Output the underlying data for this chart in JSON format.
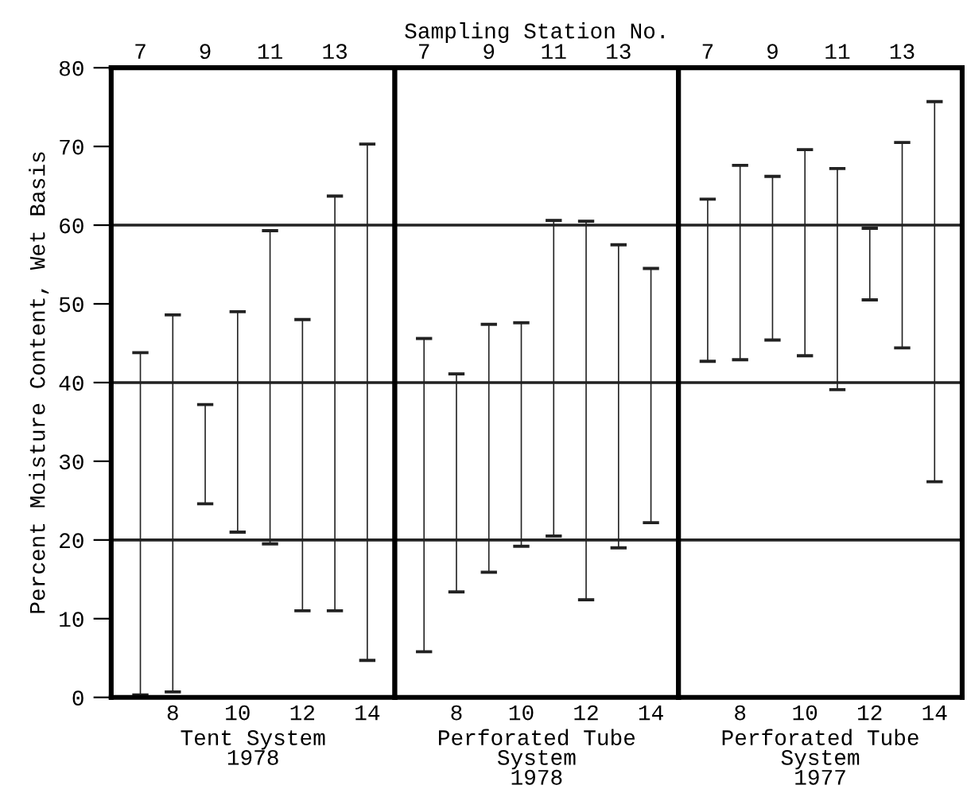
{
  "chart_data": [
    {
      "type": "bar",
      "xlabel": "Tent System\n1978",
      "ylabel": "Percent Moisture Content, Wet Basis",
      "categories": [
        "7",
        "8",
        "9",
        "10",
        "11",
        "12",
        "13",
        "14"
      ],
      "series": [
        {
          "color": "#222222",
          "base": [
            0.3,
            0.7,
            24.6,
            21.0,
            19.5,
            11.0,
            11.0,
            4.7
          ],
          "values": [
            43.5,
            47.9,
            12.6,
            28.0,
            39.8,
            37.0,
            52.7,
            65.6
          ]
        }
      ],
      "ylim": [
        0,
        80
      ],
      "yticks": [
        0,
        10,
        20,
        30,
        40,
        50,
        60,
        70,
        80
      ],
      "ref_lines": [
        {
          "axis": "y",
          "value": 20
        },
        {
          "axis": "y",
          "value": 40
        },
        {
          "axis": "y",
          "value": 60
        }
      ]
    },
    {
      "type": "bar",
      "xlabel": "Perforated Tube\nSystem\n1978",
      "x2label": "Sampling Station No.",
      "categories": [
        "7",
        "8",
        "9",
        "10",
        "11",
        "12",
        "13",
        "14"
      ],
      "series": [
        {
          "color": "#222222",
          "base": [
            5.8,
            13.4,
            15.9,
            19.2,
            20.5,
            12.4,
            19.0,
            22.2
          ],
          "values": [
            39.8,
            27.7,
            31.5,
            28.4,
            40.1,
            48.1,
            38.5,
            32.3
          ]
        }
      ],
      "ylim": [
        0,
        80
      ],
      "tick_labels": "x",
      "ref_lines": [
        {
          "axis": "y",
          "value": 20
        },
        {
          "axis": "y",
          "value": 40
        },
        {
          "axis": "y",
          "value": 60
        }
      ]
    },
    {
      "type": "bar",
      "xlabel": "Perforated Tube\nSystem\n1977",
      "categories": [
        "7",
        "8",
        "9",
        "10",
        "11",
        "12",
        "13",
        "14"
      ],
      "series": [
        {
          "color": "#222222",
          "base": [
            42.7,
            42.9,
            45.4,
            43.4,
            39.1,
            50.5,
            44.4,
            27.4
          ],
          "values": [
            20.6,
            24.7,
            20.8,
            26.2,
            28.1,
            9.1,
            26.1,
            48.3
          ]
        }
      ],
      "ylim": [
        0,
        80
      ],
      "tick_labels": "x",
      "ref_lines": [
        {
          "axis": "y",
          "value": 20
        },
        {
          "axis": "y",
          "value": 40
        },
        {
          "axis": "y",
          "value": 60
        }
      ]
    }
  ]
}
